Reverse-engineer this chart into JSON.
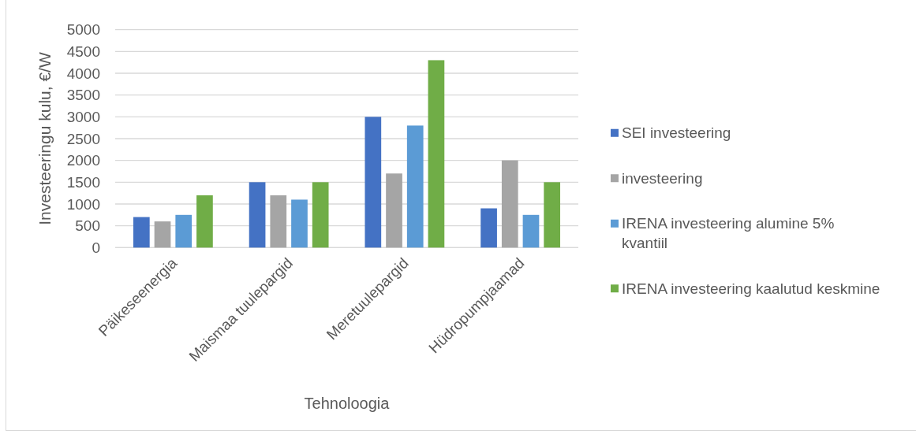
{
  "chart_data": {
    "type": "bar",
    "xlabel": "Tehnoloogia",
    "ylabel": "Investeeringu kulu, €/W",
    "categories": [
      "Päikeseenergia",
      "Maismaa tuulepargid",
      "Meretuulepargid",
      "Hüdropumpjaamad"
    ],
    "series": [
      {
        "name": "SEI investeering",
        "color": "#4472c4",
        "values": [
          700,
          1500,
          3000,
          900
        ]
      },
      {
        "name": "investeering",
        "color": "#a5a5a5",
        "values": [
          600,
          1200,
          1700,
          2000
        ]
      },
      {
        "name": "IRENA investeering alumine 5% kvantiil",
        "color": "#5b9bd5",
        "values": [
          750,
          1100,
          2800,
          750
        ]
      },
      {
        "name": "IRENA investeering kaalutud keskmine",
        "color": "#70ad47",
        "values": [
          1200,
          1500,
          4300,
          1500
        ]
      }
    ],
    "ylim": [
      0,
      5000
    ],
    "yticks": [
      0,
      500,
      1000,
      1500,
      2000,
      2500,
      3000,
      3500,
      4000,
      4500,
      5000
    ],
    "grid": "y",
    "legend": "right"
  }
}
